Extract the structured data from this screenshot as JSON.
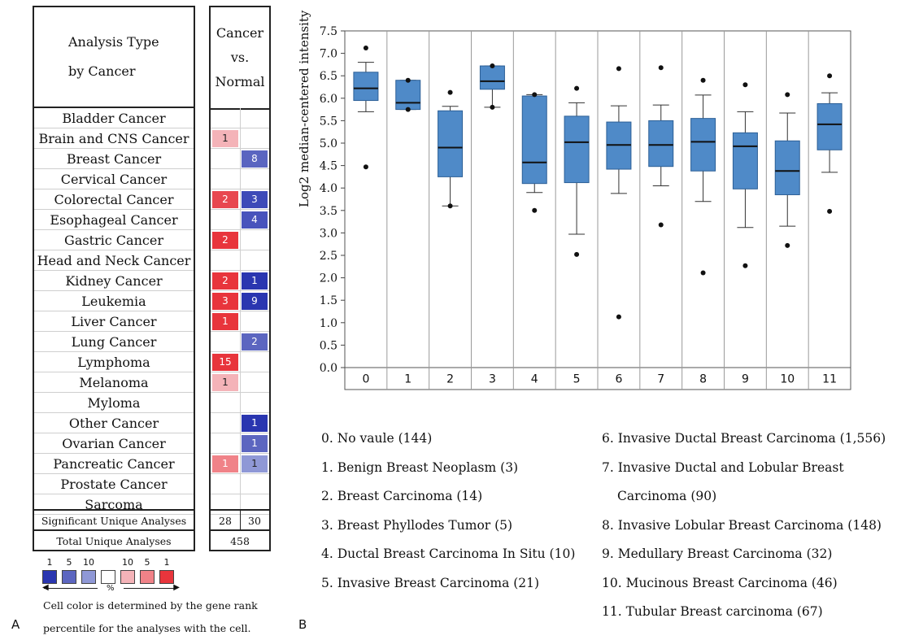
{
  "panel_a": {
    "label": "A",
    "header_left_line1": "Analysis Type",
    "header_left_line2": "by Cancer",
    "header_right_line1": "Cancer",
    "header_right_line2": "vs.",
    "header_right_line3": "Normal",
    "rows": [
      {
        "cancer": "Bladder Cancer",
        "up": "",
        "down": "",
        "up_color": "",
        "down_color": ""
      },
      {
        "cancer": "Brain and CNS Cancer",
        "up": "1",
        "down": "",
        "up_color": "#f4b3b8",
        "down_color": ""
      },
      {
        "cancer": "Breast Cancer",
        "up": "",
        "down": "8",
        "up_color": "",
        "down_color": "#5a65c0"
      },
      {
        "cancer": "Cervical Cancer",
        "up": "",
        "down": "",
        "up_color": "",
        "down_color": ""
      },
      {
        "cancer": "Colorectal Cancer",
        "up": "2",
        "down": "3",
        "up_color": "#e8474f",
        "down_color": "#3d4ab8"
      },
      {
        "cancer": "Esophageal Cancer",
        "up": "",
        "down": "4",
        "up_color": "",
        "down_color": "#4853bc"
      },
      {
        "cancer": "Gastric Cancer",
        "up": "2",
        "down": "",
        "up_color": "#e8353c",
        "down_color": ""
      },
      {
        "cancer": "Head and Neck Cancer",
        "up": "",
        "down": "",
        "up_color": "",
        "down_color": ""
      },
      {
        "cancer": "Kidney Cancer",
        "up": "2",
        "down": "1",
        "up_color": "#e8353c",
        "down_color": "#2a36b0"
      },
      {
        "cancer": "Leukemia",
        "up": "3",
        "down": "9",
        "up_color": "#e8353c",
        "down_color": "#2a36b0"
      },
      {
        "cancer": "Liver Cancer",
        "up": "1",
        "down": "",
        "up_color": "#e8353c",
        "down_color": ""
      },
      {
        "cancer": "Lung Cancer",
        "up": "",
        "down": "2",
        "up_color": "",
        "down_color": "#5c66c0"
      },
      {
        "cancer": "Lymphoma",
        "up": "15",
        "down": "",
        "up_color": "#e8353c",
        "down_color": ""
      },
      {
        "cancer": "Melanoma",
        "up": "1",
        "down": "",
        "up_color": "#f4b3b8",
        "down_color": ""
      },
      {
        "cancer": "Myloma",
        "up": "",
        "down": "",
        "up_color": "",
        "down_color": ""
      },
      {
        "cancer": "Other Cancer",
        "up": "",
        "down": "1",
        "up_color": "",
        "down_color": "#2a36b0"
      },
      {
        "cancer": "Ovarian  Cancer",
        "up": "",
        "down": "1",
        "up_color": "",
        "down_color": "#5c66c0"
      },
      {
        "cancer": "Pancreatic  Cancer",
        "up": "1",
        "down": "1",
        "up_color": "#f08288",
        "down_color": "#8f98d6"
      },
      {
        "cancer": "Prostate Cancer",
        "up": "",
        "down": "",
        "up_color": "",
        "down_color": ""
      },
      {
        "cancer": "Sarcoma",
        "up": "",
        "down": "",
        "up_color": "",
        "down_color": ""
      }
    ],
    "significant_label": "Significant Unique Analyses",
    "significant_up": "28",
    "significant_down": "30",
    "total_label": "Total Unique Analyses",
    "total_value": "458",
    "scale_numbers": [
      "1",
      "5",
      "10",
      "10",
      "5",
      "1"
    ],
    "scale_colors": [
      "#2a36b0",
      "#5c66c0",
      "#8f98d6",
      "#ffffff",
      "#f4b3b8",
      "#f08288",
      "#e8353c"
    ],
    "scale_unit": "%",
    "note_line1": "Cell color is determined by the gene rank",
    "note_line2": "percentile for the analyses with the cell."
  },
  "panel_b": {
    "label": "B",
    "legend": [
      "0. No vaule (144)",
      "1. Benign Breast Neoplasm (3)",
      "2. Breast Carcinoma (14)",
      "3. Breast Phyllodes Tumor (5)",
      "4. Ductal Breast Carcinoma In Situ (10)",
      "5. Invasive Breast Carcinoma (21)",
      "6. Invasive Ductal Breast Carcinoma (1,556)",
      "7. Invasive Ductal and Lobular Breast",
      "Carcinoma (90)",
      "8. Invasive Lobular Breast Carcinoma (148)",
      "9. Medullary Breast Carcinoma (32)",
      "10. Mucinous Breast Carcinoma (46)",
      "11. Tubular Breast carcinoma (67)"
    ]
  },
  "chart_data": {
    "type": "boxplot",
    "ylabel": "Log2 median-centered intensity",
    "xlabel": "",
    "ylim": [
      0.0,
      7.5
    ],
    "yticks": [
      "0.0",
      "0.5",
      "1.0",
      "1.5",
      "2.0",
      "2.5",
      "3.0",
      "3.5",
      "4.0",
      "4.5",
      "5.0",
      "5.5",
      "6.0",
      "6.5",
      "7.0",
      "7.5"
    ],
    "categories": [
      "0",
      "1",
      "2",
      "3",
      "4",
      "5",
      "6",
      "7",
      "8",
      "9",
      "10",
      "11"
    ],
    "box_color": "#4f8ac8",
    "series": [
      {
        "category": "0",
        "whisker_low": 5.7,
        "q1": 5.95,
        "median": 6.22,
        "q3": 6.58,
        "whisker_high": 6.8,
        "outliers": [
          7.12,
          4.47
        ]
      },
      {
        "category": "1",
        "whisker_low": 5.75,
        "q1": 5.75,
        "median": 5.9,
        "q3": 6.4,
        "whisker_high": 6.4,
        "outliers": [
          6.4,
          5.75
        ]
      },
      {
        "category": "2",
        "whisker_low": 3.6,
        "q1": 4.25,
        "median": 4.9,
        "q3": 5.72,
        "whisker_high": 5.82,
        "outliers": [
          6.13,
          3.6
        ]
      },
      {
        "category": "3",
        "whisker_low": 5.8,
        "q1": 6.2,
        "median": 6.38,
        "q3": 6.72,
        "whisker_high": 6.72,
        "outliers": [
          6.72,
          5.8
        ]
      },
      {
        "category": "4",
        "whisker_low": 3.9,
        "q1": 4.1,
        "median": 4.57,
        "q3": 6.05,
        "whisker_high": 6.08,
        "outliers": [
          6.08,
          3.5
        ]
      },
      {
        "category": "5",
        "whisker_low": 2.97,
        "q1": 4.12,
        "median": 5.02,
        "q3": 5.6,
        "whisker_high": 5.9,
        "outliers": [
          6.22,
          2.52
        ]
      },
      {
        "category": "6",
        "whisker_low": 3.88,
        "q1": 4.42,
        "median": 4.96,
        "q3": 5.47,
        "whisker_high": 5.83,
        "outliers": [
          6.66,
          1.13
        ]
      },
      {
        "category": "7",
        "whisker_low": 4.05,
        "q1": 4.48,
        "median": 4.96,
        "q3": 5.5,
        "whisker_high": 5.85,
        "outliers": [
          6.68,
          3.18
        ]
      },
      {
        "category": "8",
        "whisker_low": 3.7,
        "q1": 4.38,
        "median": 5.03,
        "q3": 5.55,
        "whisker_high": 6.07,
        "outliers": [
          6.4,
          2.11
        ]
      },
      {
        "category": "9",
        "whisker_low": 3.12,
        "q1": 3.98,
        "median": 4.93,
        "q3": 5.23,
        "whisker_high": 5.7,
        "outliers": [
          6.3,
          2.27
        ]
      },
      {
        "category": "10",
        "whisker_low": 3.15,
        "q1": 3.85,
        "median": 4.38,
        "q3": 5.05,
        "whisker_high": 5.67,
        "outliers": [
          6.08,
          2.72
        ]
      },
      {
        "category": "11",
        "whisker_low": 4.35,
        "q1": 4.85,
        "median": 5.42,
        "q3": 5.88,
        "whisker_high": 6.12,
        "outliers": [
          6.5,
          3.48
        ]
      }
    ]
  }
}
